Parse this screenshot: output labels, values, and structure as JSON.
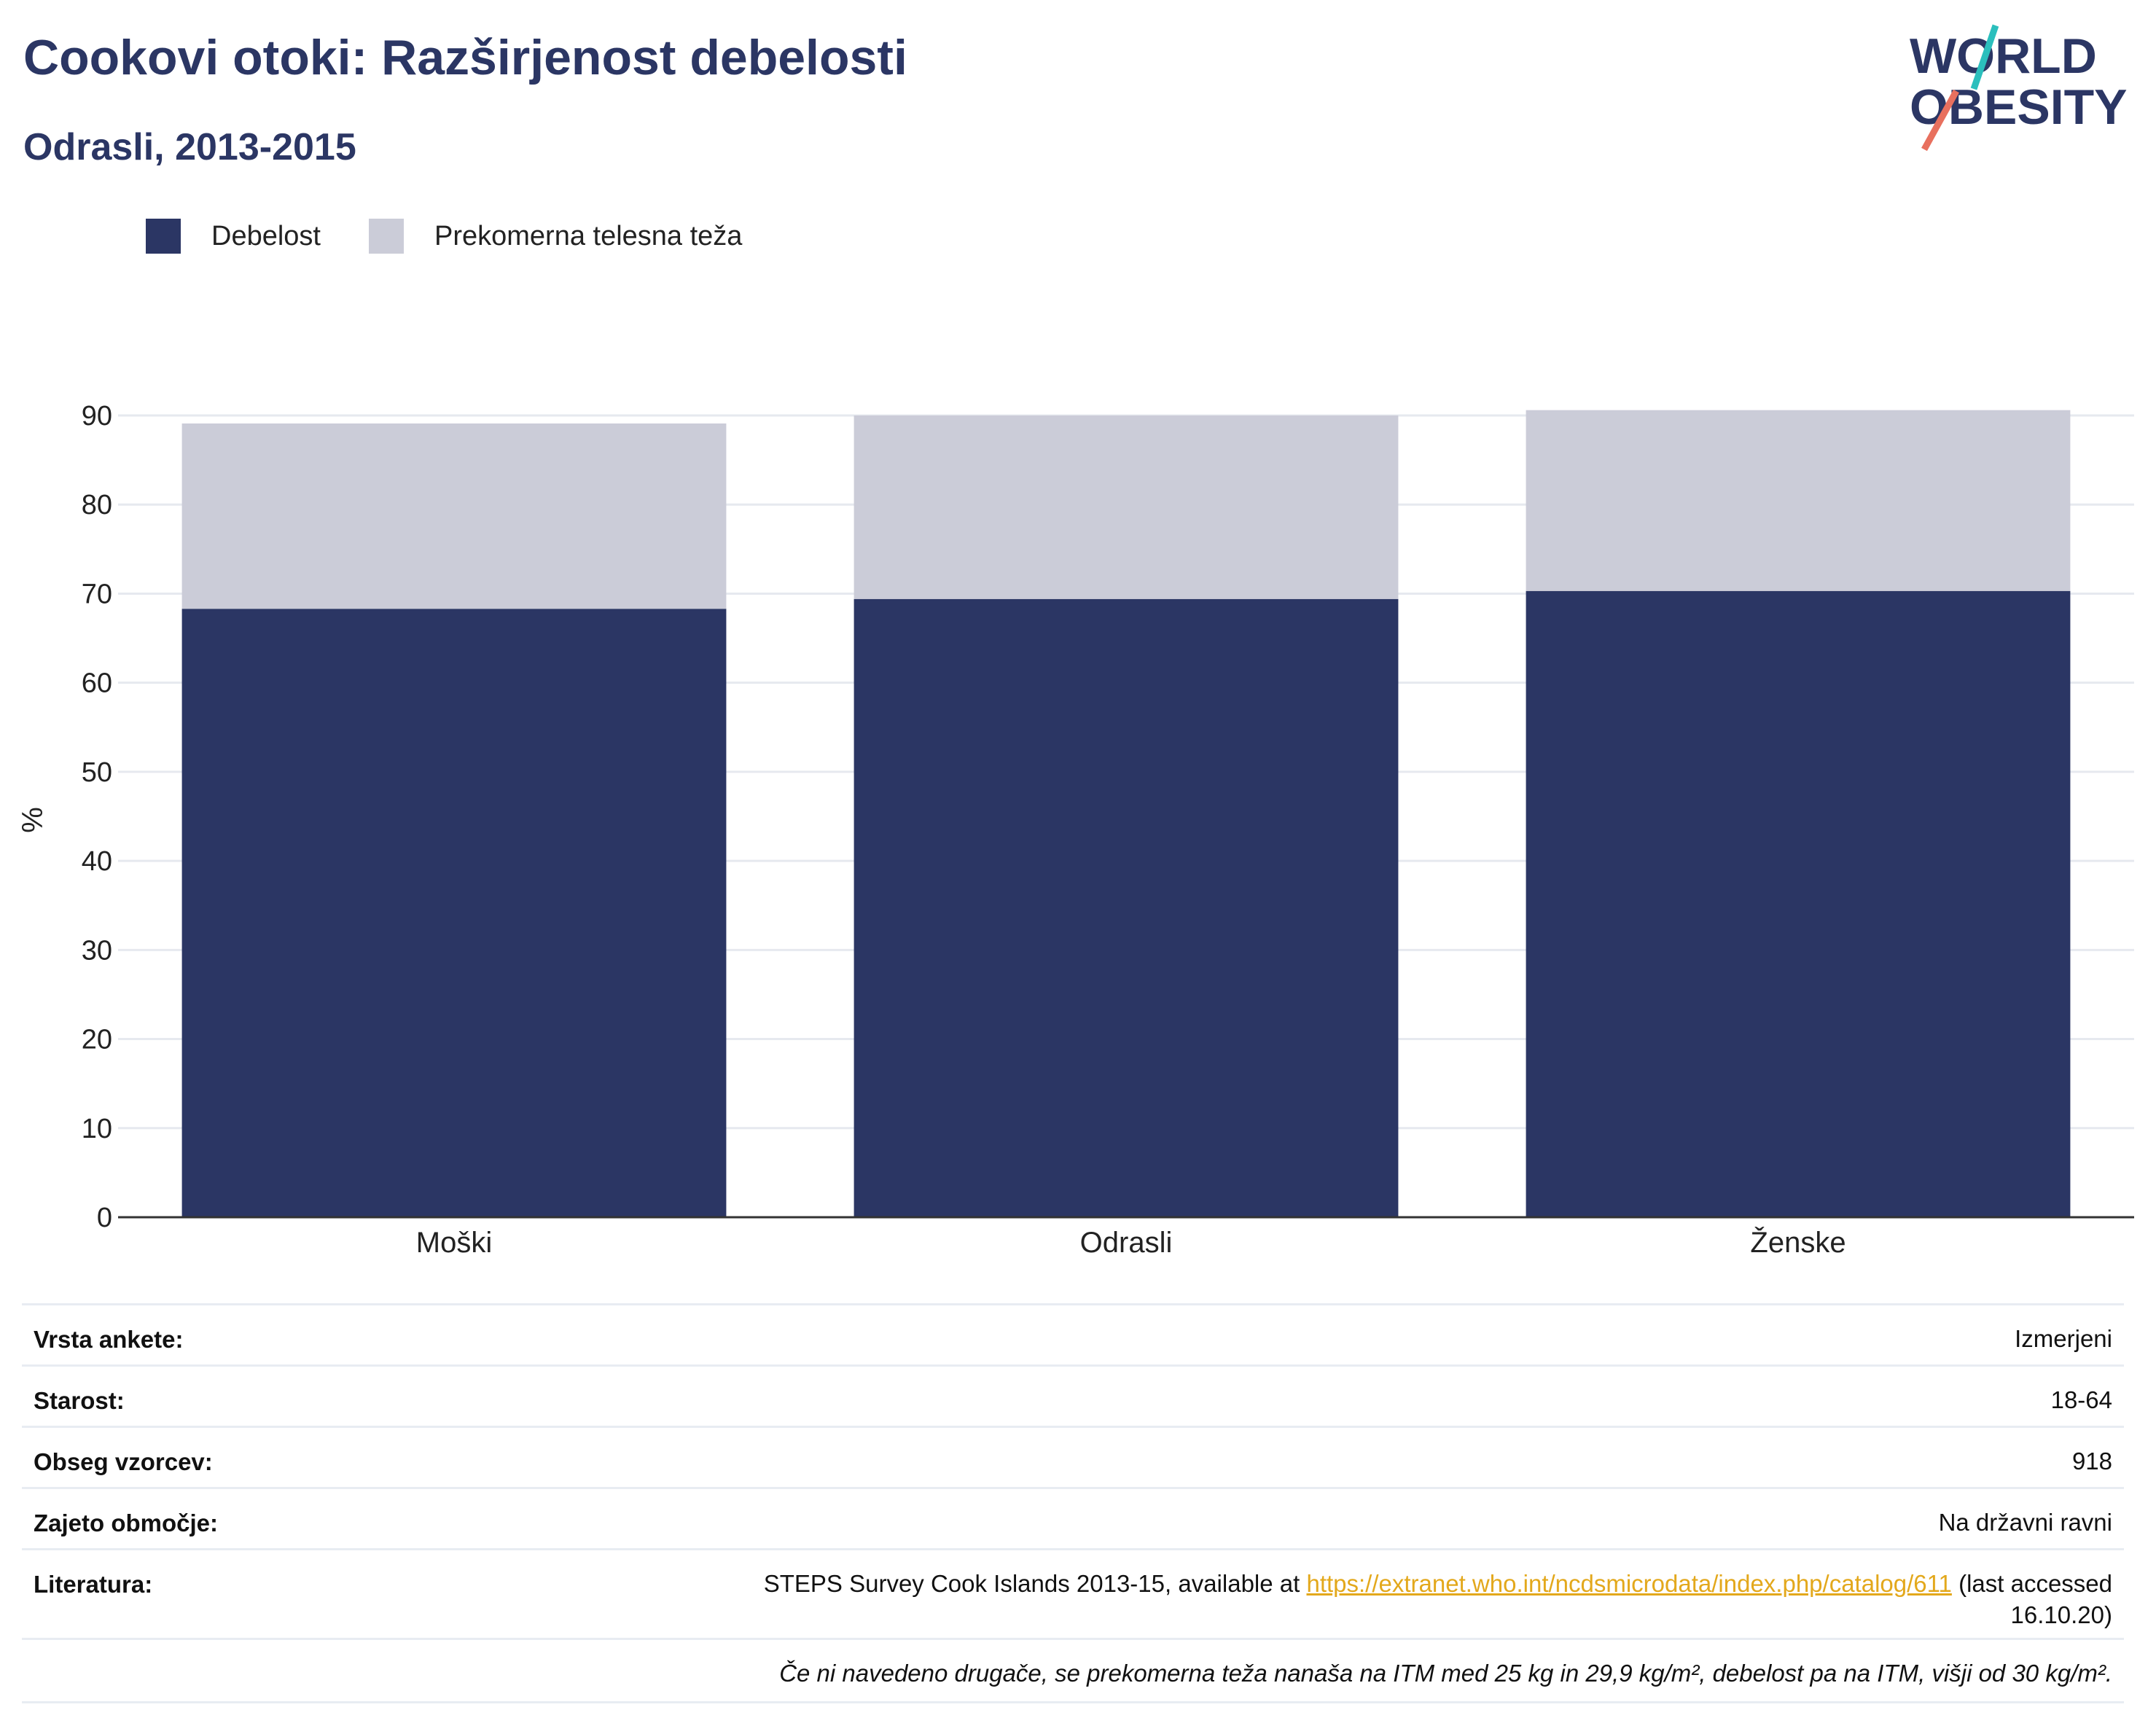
{
  "title": "Cookovi otoki: Razširjenost debelosti",
  "subtitle": "Odrasli, 2013-2015",
  "logo": {
    "line1": "WORLD",
    "line2": "OBESITY"
  },
  "colors": {
    "obesity": "#2b3664",
    "overweight": "#cbccd8",
    "accent_teal": "#2bbfbd",
    "accent_red": "#e8705e",
    "link": "#e3a81c"
  },
  "legend": [
    {
      "label": "Debelost",
      "color": "#2b3664"
    },
    {
      "label": "Prekomerna telesna teža",
      "color": "#cbccd8"
    }
  ],
  "chart_data": {
    "type": "bar",
    "stacked": true,
    "categories": [
      "Moški",
      "Odrasli",
      "Ženske"
    ],
    "series": [
      {
        "name": "Debelost",
        "values": [
          68.3,
          69.4,
          70.3
        ]
      },
      {
        "name": "Prekomerna telesna teža",
        "values": [
          20.8,
          20.6,
          20.3
        ]
      }
    ],
    "ylabel": "%",
    "ylim": [
      0,
      90
    ],
    "yticks": [
      0,
      10,
      20,
      30,
      40,
      50,
      60,
      70,
      80,
      90
    ],
    "grid": true,
    "legend_position": "top-left"
  },
  "info": {
    "survey_type_label": "Vrsta ankete:",
    "survey_type_value": "Izmerjeni",
    "age_label": "Starost:",
    "age_value": "18-64",
    "sample_label": "Obseg vzorcev:",
    "sample_value": "918",
    "area_label": "Zajeto območje:",
    "area_value": "Na državni ravni",
    "ref_label": "Literatura:",
    "ref_text": "STEPS Survey Cook Islands 2013-15, available at ",
    "ref_link": "https://extranet.who.int/ncdsmicrodata/index.php/catalog/611",
    "ref_tail": " (last accessed",
    "ref_date": "16.10.20)",
    "footnote": "Če ni navedeno drugače, se prekomerna teža nanaša na ITM med 25 kg in 29,9 kg/m², debelost pa na ITM, višji od 30 kg/m²."
  }
}
